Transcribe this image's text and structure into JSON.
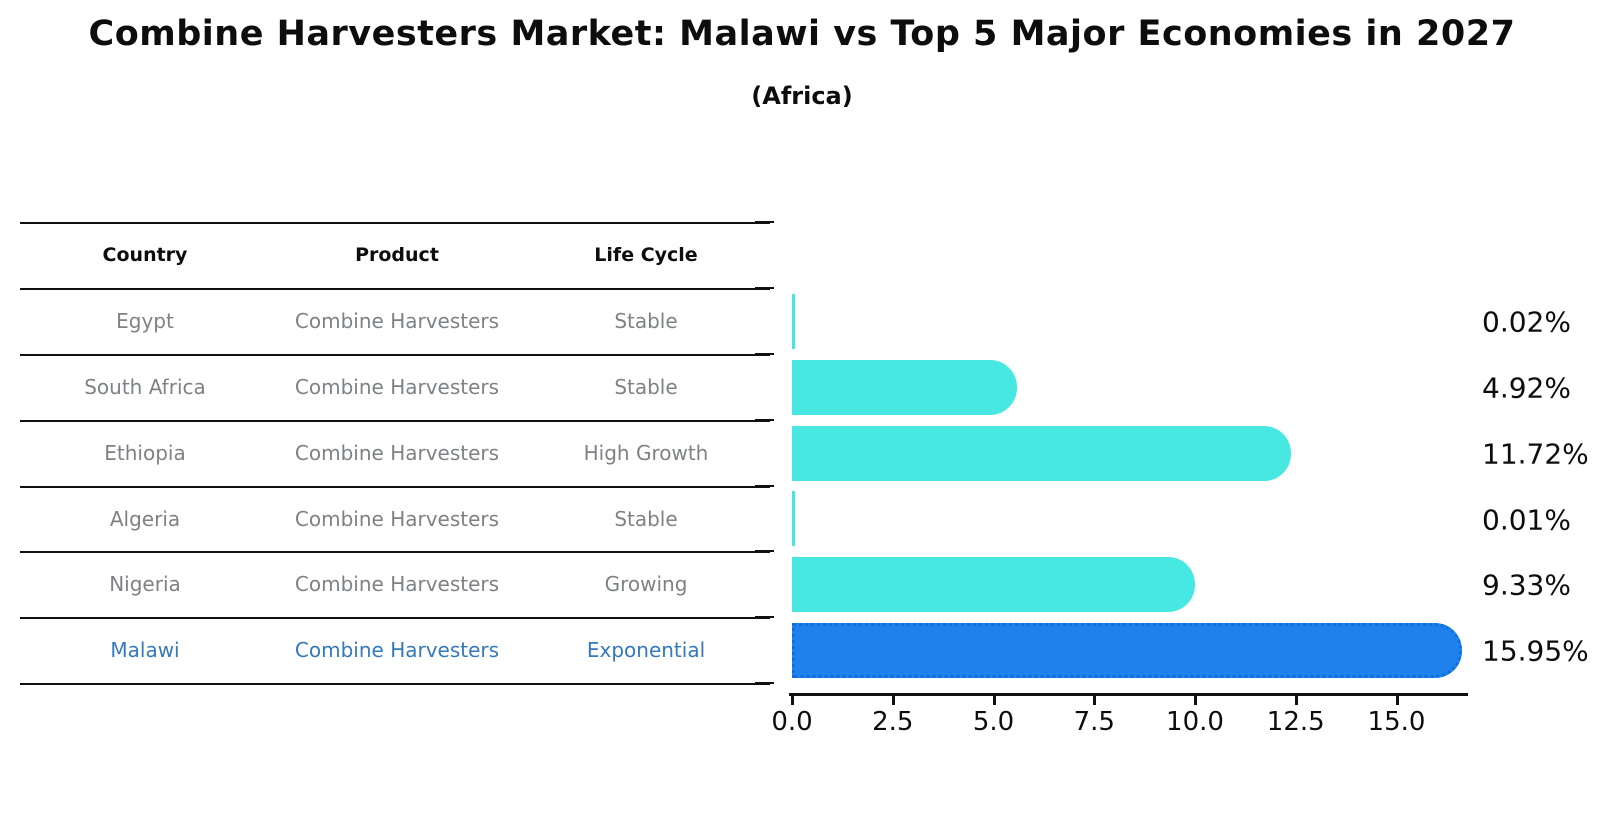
{
  "title": "Combine Harvesters Market: Malawi vs Top 5 Major Economies in 2027",
  "subtitle": "(Africa)",
  "table": {
    "headers": [
      "Country",
      "Product",
      "Life Cycle"
    ],
    "rows": [
      {
        "country": "Egypt",
        "product": "Combine Harvesters",
        "life_cycle": "Stable",
        "highlight": false
      },
      {
        "country": "South Africa",
        "product": "Combine Harvesters",
        "life_cycle": "Stable",
        "highlight": false
      },
      {
        "country": "Ethiopia",
        "product": "Combine Harvesters",
        "life_cycle": "High Growth",
        "highlight": false
      },
      {
        "country": "Algeria",
        "product": "Combine Harvesters",
        "life_cycle": "Stable",
        "highlight": false
      },
      {
        "country": "Nigeria",
        "product": "Combine Harvesters",
        "life_cycle": "Growing",
        "highlight": false
      },
      {
        "country": "Malawi",
        "product": "Combine Harvesters",
        "life_cycle": "Exponential",
        "highlight": true
      }
    ]
  },
  "chart_data": {
    "type": "bar",
    "orientation": "horizontal",
    "title": "Combine Harvesters Market: Malawi vs Top 5 Major Economies in 2027",
    "subtitle": "(Africa)",
    "categories": [
      "Egypt",
      "South Africa",
      "Ethiopia",
      "Algeria",
      "Nigeria",
      "Malawi"
    ],
    "values": [
      0.02,
      4.92,
      11.72,
      0.01,
      9.33,
      15.95
    ],
    "value_labels": [
      "0.02%",
      "4.92%",
      "11.72%",
      "0.01%",
      "9.33%",
      "15.95%"
    ],
    "highlight_index": 5,
    "xlim": [
      0,
      16.8
    ],
    "x_ticks": [
      0.0,
      2.5,
      5.0,
      7.5,
      10.0,
      12.5,
      15.0
    ],
    "x_tick_labels": [
      "0.0",
      "2.5",
      "5.0",
      "7.5",
      "10.0",
      "12.5",
      "15.0"
    ],
    "grid": false,
    "legend": null,
    "colors": {
      "bar": "#48e8e2",
      "highlight_bar": "#1f82ec",
      "highlight_bar_edge": "#0f6fdc",
      "table_text": "#7e8286",
      "highlight_text": "#3579bd",
      "axis": "#111111"
    }
  }
}
